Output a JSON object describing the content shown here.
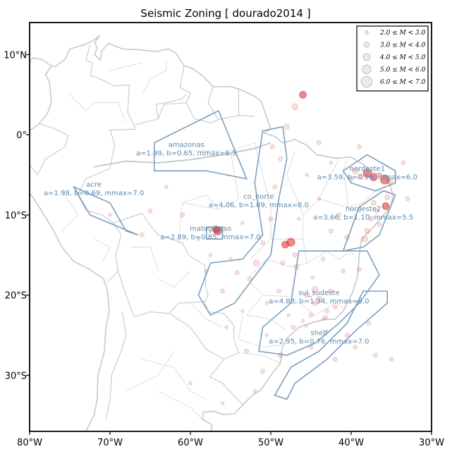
{
  "title": "Seismic Zoning [ dourado2014 ]",
  "map": {
    "lon_range": [
      -80,
      -30
    ],
    "lat_range": [
      -37,
      14
    ],
    "x_ticks": [
      {
        "lon": -80,
        "label": "80°W"
      },
      {
        "lon": -70,
        "label": "70°W"
      },
      {
        "lon": -60,
        "label": "60°W"
      },
      {
        "lon": -50,
        "label": "50°W"
      },
      {
        "lon": -40,
        "label": "40°W"
      },
      {
        "lon": -30,
        "label": "30°W"
      }
    ],
    "y_ticks": [
      {
        "lat": 10,
        "label": "10°N"
      },
      {
        "lat": 0,
        "label": "0°"
      },
      {
        "lat": -10,
        "label": "10°S"
      },
      {
        "lat": -20,
        "label": "20°S"
      },
      {
        "lat": -30,
        "label": "30°S"
      }
    ],
    "zone_color": "#7d9fc0",
    "event_color": "#d62728",
    "border_color": "#c8c8c8"
  },
  "legend": {
    "position": "top-right",
    "entries": [
      "2.0 ≤ M < 3.0",
      "3.0 ≤ M < 4.0",
      "4.0 ≤ M < 5.0",
      "5.0 ≤ M < 6.0",
      "6.0 ≤ M < 7.0"
    ]
  },
  "zones": [
    {
      "name": "amazonas",
      "params": "a=1.99, b=0.65, mmax=6.5",
      "polygon": [
        [
          -64.5,
          -1.0
        ],
        [
          -56.5,
          3.0
        ],
        [
          -53.0,
          -5.5
        ],
        [
          -58.0,
          -4.5
        ],
        [
          -64.5,
          -4.5
        ]
      ],
      "label_lon": -60.5,
      "label_lat": -1.5
    },
    {
      "name": "acre",
      "params": "a=1.98, b=0.69, mmax=7.0",
      "polygon": [
        [
          -74.5,
          -6.5
        ],
        [
          -70.0,
          -8.5
        ],
        [
          -68.0,
          -12.0
        ],
        [
          -66.5,
          -12.5
        ],
        [
          -72.5,
          -10.0
        ]
      ],
      "label_lon": -72.0,
      "label_lat": -6.5
    },
    {
      "name": "co_norte",
      "params": "a=4.06, b=1.09, mmax=6.0",
      "polygon": [
        [
          -51.0,
          0.5
        ],
        [
          -48.5,
          1.0
        ],
        [
          -48.0,
          -3.0
        ],
        [
          -49.0,
          -8.0
        ],
        [
          -50.0,
          -15.0
        ],
        [
          -54.5,
          -21.0
        ],
        [
          -57.5,
          -22.5
        ],
        [
          -59.0,
          -20.0
        ],
        [
          -57.5,
          -16.0
        ],
        [
          -53.5,
          -15.5
        ],
        [
          -51.0,
          -12.5
        ],
        [
          -52.0,
          -6.0
        ]
      ],
      "label_lon": -51.5,
      "label_lat": -8.0
    },
    {
      "name": "matogrosso",
      "params": "a=2.89, b=0.85, mmax=7.0",
      "polygon": [
        [
          -58.0,
          -11.5
        ],
        [
          -56.0,
          -11.5
        ],
        [
          -56.0,
          -13.0
        ],
        [
          -58.0,
          -13.0
        ]
      ],
      "label_lon": -57.5,
      "label_lat": -12.0
    },
    {
      "name": "nordeste1",
      "params": "a=3.59, b=0.96, mmax=6.0",
      "polygon": [
        [
          -41.0,
          -4.5
        ],
        [
          -38.0,
          -2.5
        ],
        [
          -34.5,
          -4.5
        ],
        [
          -34.5,
          -6.0
        ],
        [
          -37.0,
          -7.0
        ],
        [
          -40.0,
          -6.0
        ]
      ],
      "label_lon": -38.0,
      "label_lat": -4.5
    },
    {
      "name": "nordeste2",
      "params": "a=3.66, b=1.10, mmax=5.5",
      "polygon": [
        [
          -36.0,
          -7.0
        ],
        [
          -34.5,
          -7.5
        ],
        [
          -36.5,
          -12.5
        ],
        [
          -38.5,
          -14.0
        ],
        [
          -41.0,
          -14.5
        ],
        [
          -39.0,
          -9.0
        ]
      ],
      "label_lon": -38.5,
      "label_lat": -9.5
    },
    {
      "name": "sul_sudeste",
      "params": "a=4.88, b=1.34, mmax=6.0",
      "polygon": [
        [
          -46.5,
          -14.5
        ],
        [
          -38.0,
          -14.5
        ],
        [
          -36.5,
          -17.5
        ],
        [
          -39.0,
          -21.0
        ],
        [
          -41.5,
          -23.5
        ],
        [
          -44.5,
          -26.0
        ],
        [
          -48.0,
          -27.5
        ],
        [
          -51.5,
          -27.0
        ],
        [
          -51.0,
          -24.0
        ],
        [
          -47.5,
          -21.0
        ]
      ],
      "label_lon": -44.0,
      "label_lat": -20.0
    },
    {
      "name": "shelf",
      "params": "a=2.95, b=0.76, mmax=7.0",
      "polygon": [
        [
          -38.5,
          -19.5
        ],
        [
          -35.5,
          -19.5
        ],
        [
          -35.5,
          -21.0
        ],
        [
          -39.5,
          -24.5
        ],
        [
          -43.0,
          -28.0
        ],
        [
          -47.0,
          -31.0
        ],
        [
          -48.0,
          -33.0
        ],
        [
          -49.5,
          -32.5
        ],
        [
          -47.5,
          -29.0
        ],
        [
          -44.0,
          -27.0
        ],
        [
          -40.5,
          -23.5
        ]
      ],
      "label_lon": -44.0,
      "label_lat": -25.0
    }
  ],
  "events": [
    {
      "lon": -38.0,
      "lat": -4.8,
      "m": 5.0
    },
    {
      "lon": -37.2,
      "lat": -5.3,
      "m": 4.5
    },
    {
      "lon": -35.8,
      "lat": -5.6,
      "m": 5.5
    },
    {
      "lon": -35.2,
      "lat": -5.8,
      "m": 4.0
    },
    {
      "lon": -39.5,
      "lat": -4.5,
      "m": 4.0
    },
    {
      "lon": -35.7,
      "lat": -8.9,
      "m": 4.5
    },
    {
      "lon": -38.3,
      "lat": -13.0,
      "m": 4.0
    },
    {
      "lon": -37.2,
      "lat": -8.5,
      "m": 3.5
    },
    {
      "lon": -47.5,
      "lat": -13.4,
      "m": 5.0
    },
    {
      "lon": -48.2,
      "lat": -13.7,
      "m": 4.5
    },
    {
      "lon": -51.8,
      "lat": -16.0,
      "m": 4.0
    },
    {
      "lon": -56.8,
      "lat": -11.8,
      "m": 4.5
    },
    {
      "lon": -56.6,
      "lat": -12.0,
      "m": 5.0
    },
    {
      "lon": -44.5,
      "lat": -19.3,
      "m": 4.0
    },
    {
      "lon": -44.0,
      "lat": -20.5,
      "m": 4.0
    },
    {
      "lon": -45.5,
      "lat": -20.0,
      "m": 3.5
    },
    {
      "lon": -46.8,
      "lat": -16.5,
      "m": 3.5
    },
    {
      "lon": -47.2,
      "lat": -24.0,
      "m": 3.0
    },
    {
      "lon": -43.2,
      "lat": -22.8,
      "m": 3.0
    },
    {
      "lon": -42.0,
      "lat": -21.5,
      "m": 3.0
    },
    {
      "lon": -49.0,
      "lat": -19.5,
      "m": 3.0
    },
    {
      "lon": -50.5,
      "lat": -21.0,
      "m": 2.5
    },
    {
      "lon": -52.5,
      "lat": -18.0,
      "m": 3.0
    },
    {
      "lon": -55.0,
      "lat": -15.5,
      "m": 2.5
    },
    {
      "lon": -54.2,
      "lat": -17.2,
      "m": 3.0
    },
    {
      "lon": -56.0,
      "lat": -19.5,
      "m": 3.0
    },
    {
      "lon": -58.0,
      "lat": -17.0,
      "m": 2.5
    },
    {
      "lon": -50.0,
      "lat": -10.5,
      "m": 3.0
    },
    {
      "lon": -49.5,
      "lat": -6.5,
      "m": 3.0
    },
    {
      "lon": -48.8,
      "lat": -3.0,
      "m": 3.0
    },
    {
      "lon": -49.8,
      "lat": -1.5,
      "m": 3.0
    },
    {
      "lon": -41.5,
      "lat": -10.0,
      "m": 3.0
    },
    {
      "lon": -42.5,
      "lat": -12.0,
      "m": 3.0
    },
    {
      "lon": -40.5,
      "lat": -12.8,
      "m": 3.5
    },
    {
      "lon": -37.5,
      "lat": -10.5,
      "m": 3.0
    },
    {
      "lon": -36.5,
      "lat": -11.2,
      "m": 3.0
    },
    {
      "lon": -44.0,
      "lat": -8.0,
      "m": 2.5
    },
    {
      "lon": -45.5,
      "lat": -5.0,
      "m": 2.5
    },
    {
      "lon": -42.5,
      "lat": -3.5,
      "m": 2.5
    },
    {
      "lon": -46.5,
      "lat": -10.5,
      "m": 2.5
    },
    {
      "lon": -45.0,
      "lat": -26.5,
      "m": 3.0
    },
    {
      "lon": -48.8,
      "lat": -27.5,
      "m": 3.5
    },
    {
      "lon": -51.0,
      "lat": -29.5,
      "m": 3.0
    },
    {
      "lon": -53.0,
      "lat": -27.0,
      "m": 3.0
    },
    {
      "lon": -42.0,
      "lat": -28.0,
      "m": 3.0
    },
    {
      "lon": -39.5,
      "lat": -26.5,
      "m": 3.0
    },
    {
      "lon": -37.8,
      "lat": -23.5,
      "m": 3.0
    },
    {
      "lon": -40.5,
      "lat": -25.0,
      "m": 3.0
    },
    {
      "lon": -41.0,
      "lat": -17.0,
      "m": 3.0
    },
    {
      "lon": -39.0,
      "lat": -16.8,
      "m": 3.0
    },
    {
      "lon": -43.5,
      "lat": -15.5,
      "m": 3.0
    },
    {
      "lon": -44.8,
      "lat": -17.8,
      "m": 2.5
    },
    {
      "lon": -47.8,
      "lat": -22.5,
      "m": 2.5
    },
    {
      "lon": -46.0,
      "lat": -23.2,
      "m": 2.5
    },
    {
      "lon": -50.5,
      "lat": -25.0,
      "m": 2.5
    },
    {
      "lon": -55.5,
      "lat": -24.0,
      "m": 2.5
    },
    {
      "lon": -53.5,
      "lat": -22.0,
      "m": 2.5
    },
    {
      "lon": -57.5,
      "lat": -15.0,
      "m": 2.5
    },
    {
      "lon": -59.0,
      "lat": -13.0,
      "m": 2.5
    },
    {
      "lon": -61.0,
      "lat": -10.0,
      "m": 3.0
    },
    {
      "lon": -65.0,
      "lat": -9.5,
      "m": 3.0
    },
    {
      "lon": -66.0,
      "lat": -12.5,
      "m": 3.0
    },
    {
      "lon": -70.0,
      "lat": -10.0,
      "m": 2.5
    },
    {
      "lon": -63.0,
      "lat": -6.5,
      "m": 2.5
    },
    {
      "lon": -48.0,
      "lat": 1.0,
      "m": 3.5
    },
    {
      "lon": -47.0,
      "lat": 3.5,
      "m": 4.0
    },
    {
      "lon": -46.0,
      "lat": 5.0,
      "m": 4.5
    },
    {
      "lon": -44.0,
      "lat": -1.0,
      "m": 3.0
    },
    {
      "lon": -39.0,
      "lat": -1.5,
      "m": 3.0
    },
    {
      "lon": -33.5,
      "lat": -3.5,
      "m": 3.0
    },
    {
      "lon": -33.0,
      "lat": -8.0,
      "m": 3.0
    },
    {
      "lon": -35.0,
      "lat": -28.0,
      "m": 3.0
    },
    {
      "lon": -37.0,
      "lat": -27.5,
      "m": 3.0
    },
    {
      "lon": -56.0,
      "lat": -33.5,
      "m": 2.5
    },
    {
      "lon": -52.0,
      "lat": -32.0,
      "m": 2.5
    },
    {
      "lon": -60.0,
      "lat": -31.0,
      "m": 2.5
    },
    {
      "lon": -43.0,
      "lat": -22.0,
      "m": 3.0
    },
    {
      "lon": -42.6,
      "lat": -19.5,
      "m": 3.0
    },
    {
      "lon": -48.5,
      "lat": -16.0,
      "m": 3.0
    },
    {
      "lon": -47.0,
      "lat": -15.0,
      "m": 3.0
    },
    {
      "lon": -51.0,
      "lat": -13.5,
      "m": 3.0
    },
    {
      "lon": -53.5,
      "lat": -11.0,
      "m": 2.5
    },
    {
      "lon": -38.8,
      "lat": -5.2,
      "m": 3.5
    },
    {
      "lon": -36.5,
      "lat": -5.0,
      "m": 3.5
    },
    {
      "lon": -40.0,
      "lat": -5.5,
      "m": 3.0
    },
    {
      "lon": -35.5,
      "lat": -7.8,
      "m": 3.5
    },
    {
      "lon": -36.8,
      "lat": -9.5,
      "m": 3.0
    },
    {
      "lon": -38.0,
      "lat": -12.0,
      "m": 3.5
    },
    {
      "lon": -44.5,
      "lat": -21.0,
      "m": 3.5
    },
    {
      "lon": -45.0,
      "lat": -22.5,
      "m": 3.0
    }
  ]
}
